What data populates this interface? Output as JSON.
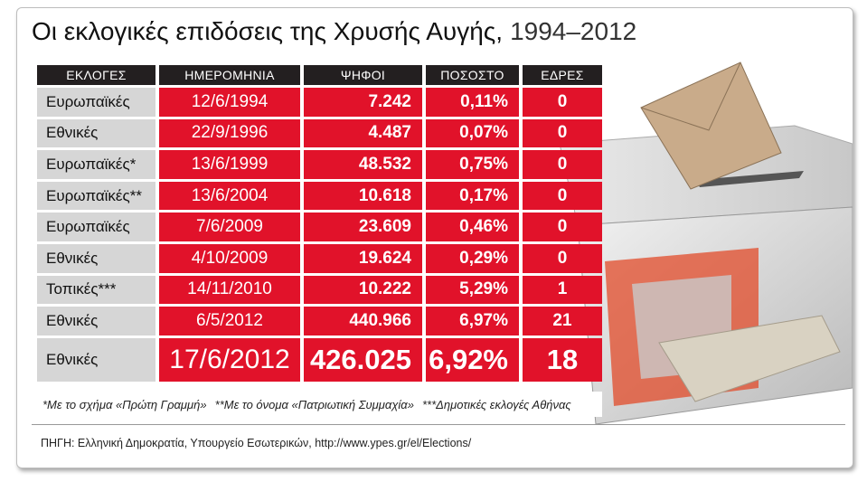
{
  "header": {
    "title": "Οι εκλογικές επιδόσεις της Χρυσής Αυγής,",
    "years": "1994–2012"
  },
  "table": {
    "columns": [
      "ΕΚΛΟΓΕΣ",
      "ΗΜΕΡΟΜΗΝΙΑ",
      "ΨΗΦΟΙ",
      "ΠΟΣΟΣΤΟ",
      "ΕΔΡΕΣ"
    ],
    "rows": [
      [
        "Ευρωπαϊκές",
        "12/6/1994",
        "7.242",
        "0,11%",
        "0"
      ],
      [
        "Εθνικές",
        "22/9/1996",
        "4.487",
        "0,07%",
        "0"
      ],
      [
        "Ευρωπαϊκές*",
        "13/6/1999",
        "48.532",
        "0,75%",
        "0"
      ],
      [
        "Ευρωπαϊκές**",
        "13/6/2004",
        "10.618",
        "0,17%",
        "0"
      ],
      [
        "Ευρωπαϊκές",
        "7/6/2009",
        "23.609",
        "0,46%",
        "0"
      ],
      [
        "Εθνικές",
        "4/10/2009",
        "19.624",
        "0,29%",
        "0"
      ],
      [
        "Τοπικές***",
        "14/11/2010",
        "10.222",
        "5,29%",
        "1"
      ],
      [
        "Εθνικές",
        "6/5/2012",
        "440.966",
        "6,97%",
        "21"
      ],
      [
        "Εθνικές",
        "17/6/2012",
        "426.025",
        "6,92%",
        "18"
      ]
    ]
  },
  "footnotes": [
    "*Με το σχήμα «Πρώτη Γραμμή»",
    "**Με το όνομα «Πατριωτική Συμμαχία»",
    "***Δημοτικές εκλογές Αθήνας"
  ],
  "source": "ΠΗΓΗ: Ελληνική Δημοκρατία, Υπουργείο Εσωτερικών, http://www.ypes.gr/el/Elections/"
}
